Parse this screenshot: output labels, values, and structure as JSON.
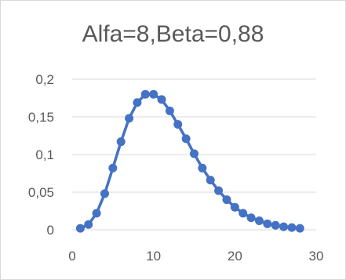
{
  "chart_data": {
    "type": "scatter",
    "title": "Alfa=8,Beta=0,88",
    "xlabel": "",
    "ylabel": "",
    "xlim": [
      0,
      30
    ],
    "ylim": [
      0,
      0.2
    ],
    "x_ticks": [
      0,
      10,
      20,
      30
    ],
    "x_tick_labels": [
      "0",
      "10",
      "20",
      "30"
    ],
    "y_ticks": [
      0,
      0.05,
      0.1,
      0.15,
      0.2
    ],
    "y_tick_labels": [
      "0",
      "0,05",
      "0,1",
      "0,15",
      "0,2"
    ],
    "grid": "horizontal",
    "legend": "none",
    "colors": {
      "series": "#4472c4",
      "grid": "#d9d9d9",
      "text": "#595959"
    },
    "series": [
      {
        "x": [
          1,
          2,
          3,
          4,
          5,
          6,
          7,
          8,
          9,
          10,
          11,
          12,
          13,
          14,
          15,
          16,
          17,
          18,
          19,
          20,
          21,
          22,
          23,
          24,
          25,
          26,
          27,
          28
        ],
        "values": [
          0.002,
          0.007,
          0.022,
          0.048,
          0.082,
          0.117,
          0.148,
          0.169,
          0.18,
          0.18,
          0.173,
          0.158,
          0.14,
          0.121,
          0.101,
          0.082,
          0.066,
          0.052,
          0.04,
          0.03,
          0.022,
          0.016,
          0.012,
          0.008,
          0.006,
          0.004,
          0.003,
          0.002
        ]
      }
    ]
  }
}
